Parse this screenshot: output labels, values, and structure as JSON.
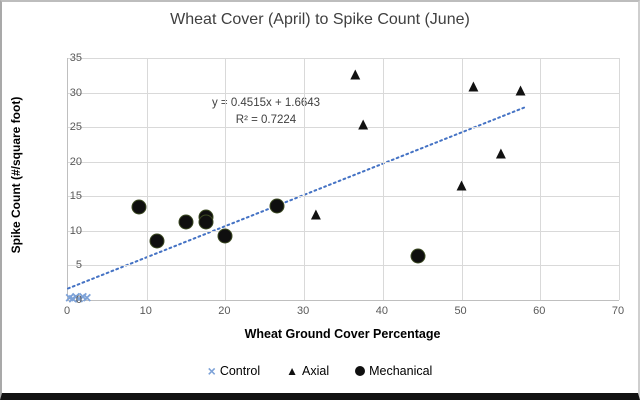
{
  "chart_data": {
    "type": "scatter",
    "title": "Wheat Cover (April) to Spike Count (June)",
    "xlabel": "Wheat Ground Cover Percentage",
    "ylabel": "Spike Count (#/square foot)",
    "xlim": [
      0,
      70
    ],
    "ylim": [
      0,
      35
    ],
    "xticks": [
      0,
      10,
      20,
      30,
      40,
      50,
      60,
      70
    ],
    "yticks": [
      0,
      5,
      10,
      15,
      20,
      25,
      30,
      35
    ],
    "grid": true,
    "legend_position": "bottom",
    "series": [
      {
        "name": "Control",
        "marker": "x",
        "color": "#7da2d8",
        "points": [
          [
            0.2,
            0.15
          ],
          [
            0.6,
            0.0
          ],
          [
            1.0,
            0.35
          ],
          [
            1.4,
            0.05
          ],
          [
            1.9,
            0.25
          ],
          [
            2.4,
            0.1
          ]
        ]
      },
      {
        "name": "Axial",
        "marker": "triangle",
        "color": "#111111",
        "points": [
          [
            31.5,
            12.4
          ],
          [
            36.5,
            32.7
          ],
          [
            37.5,
            25.4
          ],
          [
            50,
            16.6
          ],
          [
            51.5,
            31
          ],
          [
            55,
            21.2
          ],
          [
            57.5,
            30.4
          ]
        ]
      },
      {
        "name": "Mechanical",
        "marker": "circle",
        "color": "#0f0f0f",
        "points": [
          [
            9,
            13.5
          ],
          [
            11.3,
            8.6
          ],
          [
            15,
            11.3
          ],
          [
            17.5,
            12
          ],
          [
            17.5,
            11.3
          ],
          [
            20,
            9.3
          ],
          [
            26.5,
            13.6
          ],
          [
            44.5,
            6.3
          ]
        ]
      }
    ],
    "trendline": {
      "slope": 0.4515,
      "intercept": 1.6643,
      "x_start": 0,
      "x_end": 58,
      "style": "dotted",
      "color": "#4472c4",
      "equation_label": "y = 0.4515x + 1.6643",
      "r_squared_label": "R² = 0.7224"
    }
  },
  "colors": {
    "gridline": "#d9d9d9",
    "axis_line": "#bfbfbf",
    "tick_label": "#595959",
    "title_text": "#3f3f3f",
    "equation_text": "#404040"
  }
}
